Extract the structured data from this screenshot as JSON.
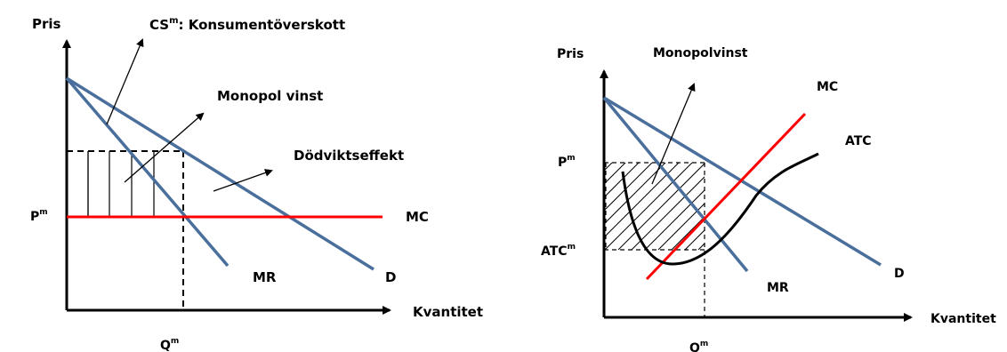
{
  "colors": {
    "demand_line": "#4a6f9c",
    "mc_line": "#ff0000",
    "atc_curve": "#000000",
    "axes": "#000000",
    "background": "#ffffff"
  },
  "left_diagram": {
    "y_axis_label": "Pris",
    "x_axis_label": "Kvantitet",
    "price_label": "P",
    "price_sup": "m",
    "quantity_label": "Q",
    "quantity_sup": "m",
    "cs_prefix": "CS",
    "cs_sup": "m",
    "cs_text": ": Konsumentöverskott",
    "profit_label": "Monopol vinst",
    "deadweight_label": "Dödviktseffekt",
    "mc_label": "MC",
    "mr_label": "MR",
    "d_label": "D"
  },
  "right_diagram": {
    "y_axis_label": "Pris",
    "x_axis_label": "Kvantitet",
    "price_label": "P",
    "price_sup": "m",
    "atc_level_label": "ATC",
    "atc_level_sup": "m",
    "quantity_label": "Q",
    "quantity_sup": "m",
    "profit_label": "Monopolvinst",
    "mc_label": "MC",
    "atc_label": "ATC",
    "mr_label": "MR",
    "d_label": "D"
  }
}
